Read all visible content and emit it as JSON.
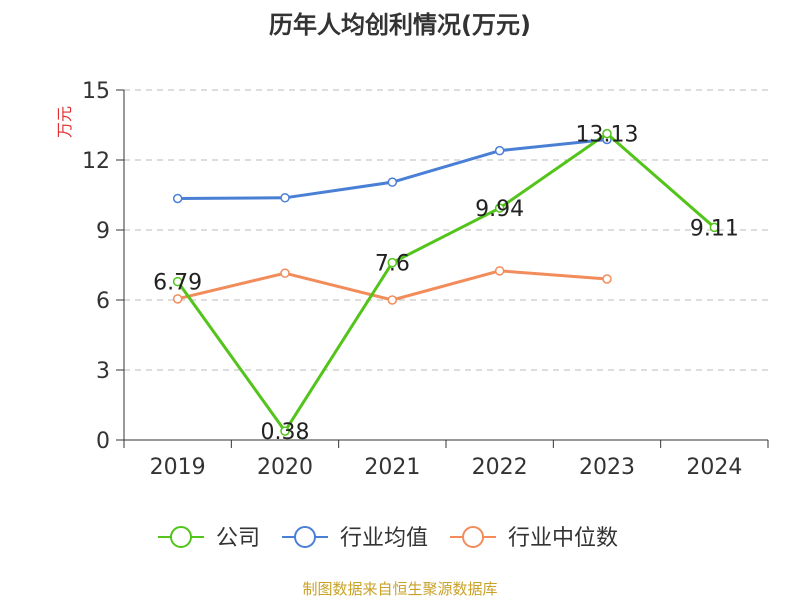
{
  "chart_data": {
    "type": "line",
    "title": "历年人均创利情况(万元)",
    "ylabel": "万元",
    "categories": [
      "2019",
      "2020",
      "2021",
      "2022",
      "2023",
      "2024"
    ],
    "yticks": [
      "0",
      "3",
      "6",
      "9",
      "12",
      "15"
    ],
    "ylim": [
      0,
      15
    ],
    "grid": true,
    "legend_position": "bottom",
    "series": [
      {
        "name": "公司",
        "color": "#52c41a",
        "values": [
          6.79,
          0.38,
          7.6,
          9.94,
          13.13,
          9.11
        ],
        "labels": [
          "6.79",
          "0.38",
          "7.6",
          "9.94",
          "13.13",
          "9.11"
        ]
      },
      {
        "name": "行业均值",
        "color": "#4a7fd6",
        "values": [
          10.35,
          10.38,
          11.05,
          12.4,
          12.88,
          null
        ]
      },
      {
        "name": "行业中位数",
        "color": "#f28c5a",
        "values": [
          6.05,
          7.15,
          6.0,
          7.25,
          6.9,
          null
        ]
      }
    ]
  },
  "source": "制图数据来自恒生聚源数据库"
}
